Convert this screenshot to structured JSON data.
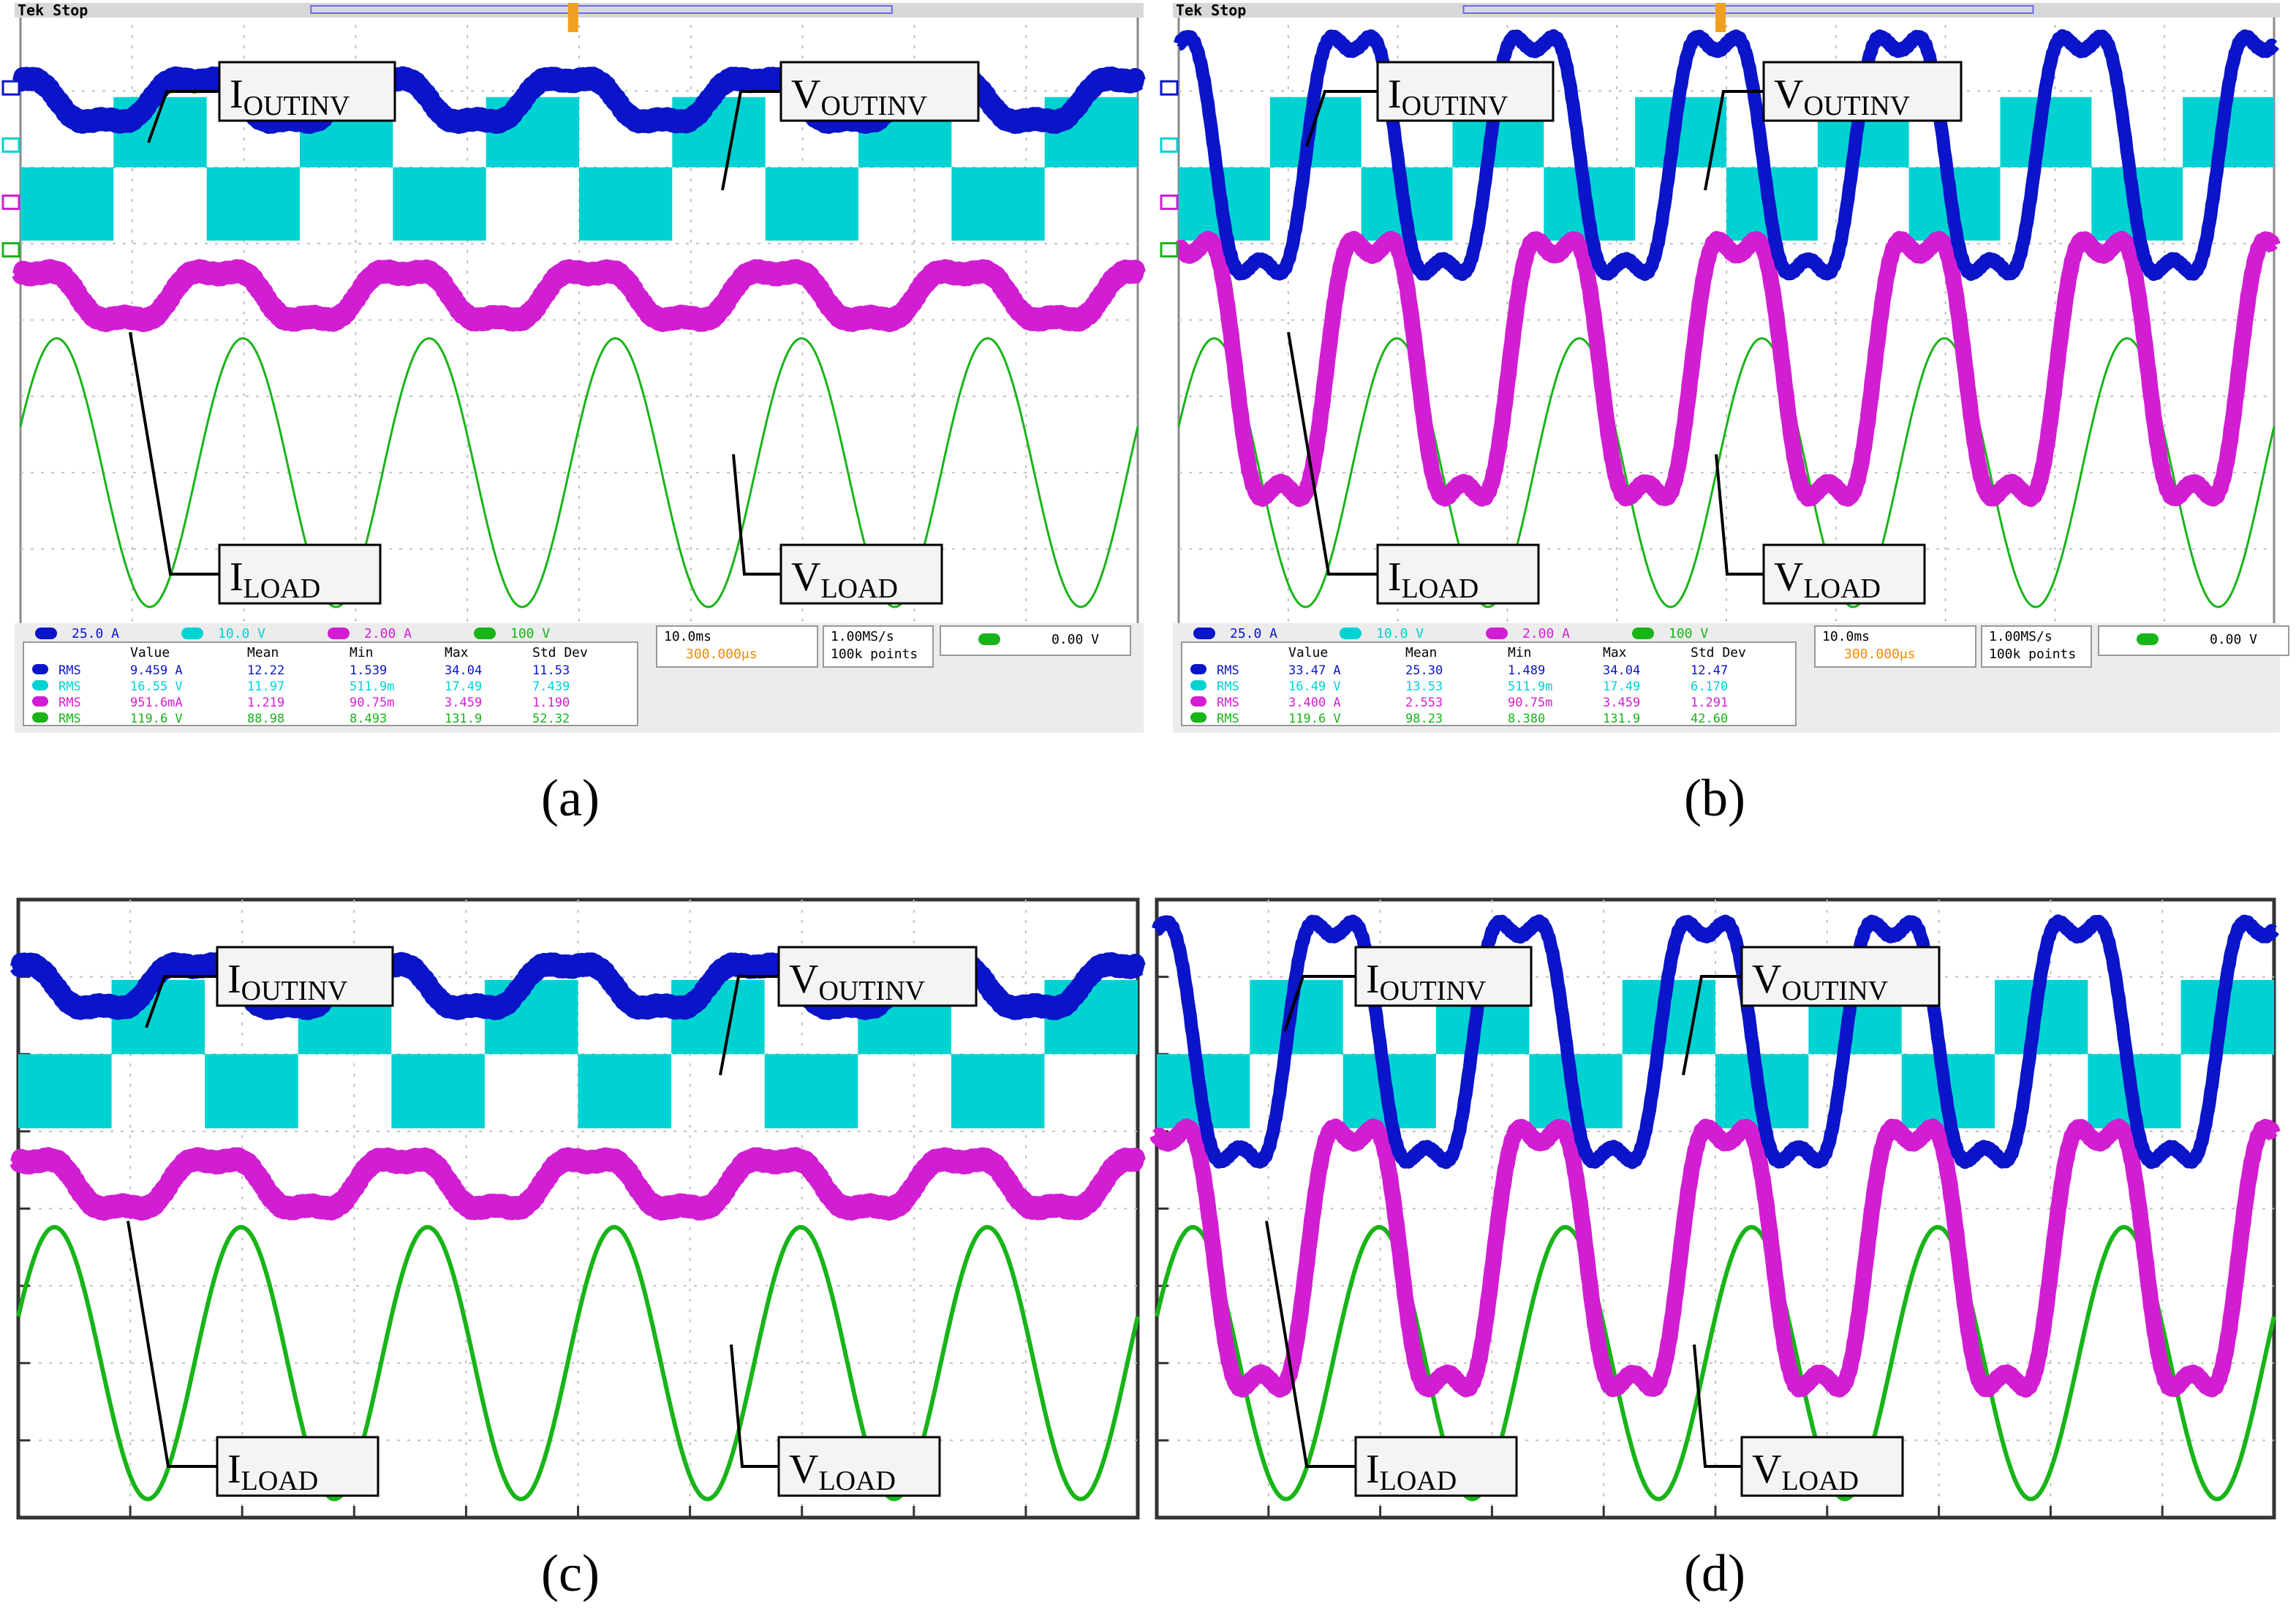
{
  "colors": {
    "ch1": "#0a14c8",
    "ch2": "#00d2d2",
    "ch3": "#d21ed2",
    "ch4": "#18b418",
    "scope_grid": "#bfbfbf",
    "sim_grid": "#c0c0c0"
  },
  "scope_common": {
    "header": "Tek Stop",
    "timebase": "10.0ms",
    "trigger_delay": "300.000μs",
    "sample_rate": "1.00MS/s",
    "record": "100k points",
    "trigger_level": "0.00 V",
    "scale_ch1": "25.0 A",
    "scale_ch2": "10.0 V",
    "scale_ch3": "2.00 A",
    "scale_ch4": "100 V",
    "meas_headers": [
      "Value",
      "Mean",
      "Min",
      "Max",
      "Std Dev"
    ],
    "meas_type": "RMS"
  },
  "signal_labels": {
    "i_outinv": "I",
    "i_outinv_sub": "OUTINV",
    "v_outinv": "V",
    "v_outinv_sub": "OUTINV",
    "i_load": "I",
    "i_load_sub": "LOAD",
    "v_load": "V",
    "v_load_sub": "LOAD"
  },
  "captions": [
    "(a)",
    "(b)",
    "(c)",
    "(d)"
  ],
  "measurements": {
    "a": [
      [
        "9.459 A",
        "12.22",
        "1.539",
        "34.04",
        "11.53"
      ],
      [
        "16.55 V",
        "11.97",
        "511.9m",
        "17.49",
        "7.439"
      ],
      [
        "951.6mA",
        "1.219",
        "90.75m",
        "3.459",
        "1.190"
      ],
      [
        "119.6 V",
        "88.98",
        "8.493",
        "131.9",
        "52.32"
      ]
    ],
    "b": [
      [
        "33.47 A",
        "25.30",
        "1.489",
        "34.04",
        "12.47"
      ],
      [
        "16.49 V",
        "13.53",
        "511.9m",
        "17.49",
        "6.170"
      ],
      [
        "3.400 A",
        "2.553",
        "90.75m",
        "3.459",
        "1.291"
      ],
      [
        "119.6 V",
        "98.23",
        "8.380",
        "131.9",
        "42.60"
      ]
    ]
  },
  "chart_data": [
    {
      "panel": "a",
      "type": "line",
      "source": "oscilloscope capture",
      "series": [
        {
          "name": "I_OUTINV"
        },
        {
          "name": "V_OUTINV"
        },
        {
          "name": "I_LOAD"
        },
        {
          "name": "V_LOAD"
        }
      ],
      "fundamental_cycles_shown": 6,
      "pwm_bursts_shown": 6
    },
    {
      "panel": "b",
      "type": "line",
      "source": "oscilloscope capture",
      "series": [
        {
          "name": "I_OUTINV"
        },
        {
          "name": "V_OUTINV"
        },
        {
          "name": "I_LOAD"
        },
        {
          "name": "V_LOAD"
        }
      ],
      "fundamental_cycles_shown": 6,
      "pwm_bursts_shown": 6
    },
    {
      "panel": "c",
      "type": "line",
      "source": "simulation",
      "series": [
        {
          "name": "I_OUTINV"
        },
        {
          "name": "V_OUTINV"
        },
        {
          "name": "I_LOAD"
        },
        {
          "name": "V_LOAD"
        }
      ],
      "fundamental_cycles_shown": 6,
      "pwm_bursts_shown": 6
    },
    {
      "panel": "d",
      "type": "line",
      "source": "simulation",
      "series": [
        {
          "name": "I_OUTINV"
        },
        {
          "name": "V_OUTINV"
        },
        {
          "name": "I_LOAD"
        },
        {
          "name": "V_LOAD"
        }
      ],
      "fundamental_cycles_shown": 6,
      "pwm_bursts_shown": 6
    }
  ]
}
